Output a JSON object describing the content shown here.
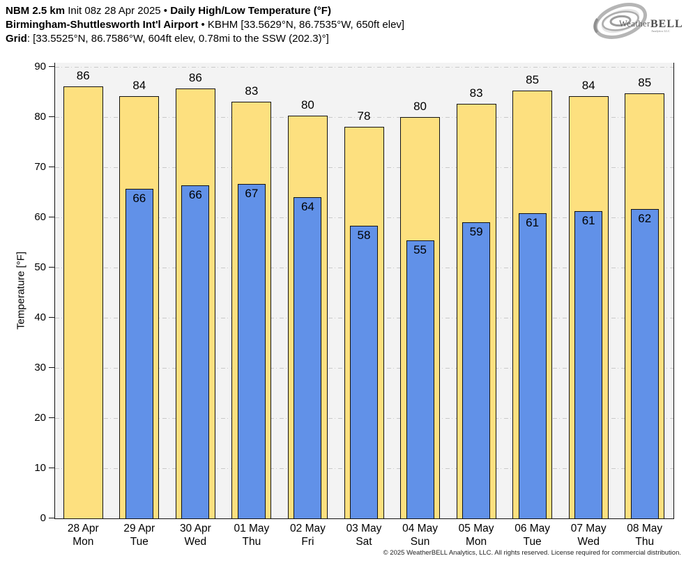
{
  "header": {
    "l1a": "NBM 2.5 km",
    "l1b": " Init 08z 28 Apr 2025 • ",
    "l1c": "Daily High/Low Temperature (°F)",
    "l2a": "Birmingham-Shuttlesworth Int'l Airport",
    "l2b": " • KBHM [33.5629°N, 86.7535°W, 650ft elev]",
    "l3a": "Grid",
    "l3b": ": [33.5525°N, 86.7586°W, 604ft elev, 0.78mi to the SSW (202.3)°]"
  },
  "logo": {
    "word1": "Weather",
    "word2": "BELL",
    "sub": "Analytics LLC"
  },
  "chart_data": {
    "type": "bar",
    "title": "Daily High/Low Temperature (°F)",
    "ylabel": "Temperature [°F]",
    "ylim": [
      0,
      91
    ],
    "yticks": [
      0,
      10,
      20,
      30,
      40,
      50,
      60,
      70,
      80,
      90
    ],
    "grid": "horizontal dash-dot",
    "legend": "none",
    "categories": [
      "28 Apr",
      "29 Apr",
      "30 Apr",
      "01 May",
      "02 May",
      "03 May",
      "04 May",
      "05 May",
      "06 May",
      "07 May",
      "08 May"
    ],
    "weekdays": [
      "Mon",
      "Tue",
      "Wed",
      "Thu",
      "Fri",
      "Sat",
      "Sun",
      "Mon",
      "Tue",
      "Wed",
      "Thu"
    ],
    "series": [
      {
        "name": "High",
        "color": "#FDE07F",
        "labels": [
          86,
          84,
          86,
          83,
          80,
          78,
          80,
          83,
          85,
          84,
          85
        ],
        "plotted": [
          86.1,
          84.2,
          85.7,
          83.1,
          80.3,
          78.1,
          80.0,
          82.6,
          85.3,
          84.2,
          84.7
        ]
      },
      {
        "name": "Low",
        "color": "#6191E8",
        "labels": [
          null,
          66,
          66,
          67,
          64,
          58,
          55,
          59,
          61,
          61,
          62
        ],
        "plotted": [
          null,
          65.7,
          66.4,
          66.7,
          64.0,
          58.3,
          55.4,
          59.0,
          60.8,
          61.3,
          61.7
        ]
      }
    ],
    "colors": {
      "plot_bg": "#F3F3F3",
      "grid": "#C9C9C9",
      "bar_border": "#111111"
    }
  },
  "footer": {
    "copyright": "© 2025 WeatherBELL Analytics, LLC. All rights reserved. License required for commercial distribution."
  }
}
